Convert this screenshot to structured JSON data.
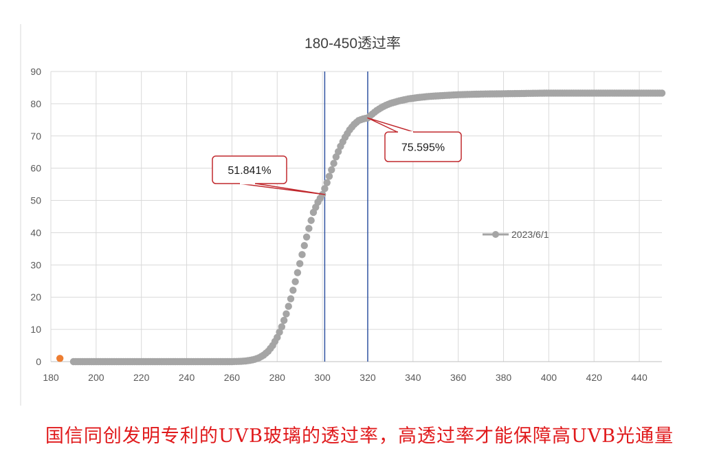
{
  "chart_data": {
    "type": "scatter",
    "title": "180-450透过率",
    "xlabel": "",
    "ylabel": "",
    "xlim": [
      180,
      450
    ],
    "ylim": [
      0,
      90
    ],
    "x_ticks": [
      180,
      200,
      220,
      240,
      260,
      280,
      300,
      320,
      340,
      360,
      380,
      400,
      420,
      440
    ],
    "y_ticks": [
      0,
      10,
      20,
      30,
      40,
      50,
      60,
      70,
      80,
      90
    ],
    "grid": true,
    "legend_position": "right",
    "series": [
      {
        "name": "2023/6/1",
        "color": "#a5a5a5",
        "x": [
          190,
          200,
          210,
          220,
          230,
          240,
          250,
          260,
          264,
          266,
          268,
          270,
          272,
          274,
          276,
          278,
          280,
          282,
          284,
          286,
          288,
          290,
          292,
          294,
          296,
          298,
          300,
          302,
          304,
          306,
          308,
          310,
          312,
          314,
          316,
          318,
          320,
          322,
          324,
          326,
          328,
          330,
          334,
          338,
          342,
          346,
          350,
          355,
          360,
          365,
          370,
          380,
          390,
          400,
          410,
          420,
          430,
          440,
          450
        ],
        "y": [
          0,
          0,
          0,
          0,
          0,
          0,
          0,
          0,
          0.1,
          0.2,
          0.4,
          0.7,
          1.2,
          2,
          3.2,
          5,
          7.5,
          10.8,
          14.8,
          19.5,
          24.8,
          30.4,
          36,
          41.3,
          46.3,
          49.5,
          51.841,
          55.5,
          59.5,
          63.5,
          66.8,
          69.6,
          71.9,
          73.6,
          74.8,
          75.3,
          75.595,
          76.8,
          77.9,
          78.8,
          79.5,
          80.1,
          80.9,
          81.5,
          81.9,
          82.2,
          82.4,
          82.6,
          82.8,
          82.9,
          83,
          83.1,
          83.2,
          83.3,
          83.3,
          83.3,
          83.3,
          83.3,
          83.3
        ]
      },
      {
        "name": "",
        "color": "#ed7d31",
        "x": [
          184
        ],
        "y": [
          1
        ]
      }
    ],
    "vertical_lines": [
      {
        "x": 301,
        "color": "#2f52a0"
      },
      {
        "x": 320,
        "color": "#2f52a0"
      }
    ],
    "annotations": [
      {
        "text": "51.841%",
        "point": [
          301,
          51.841
        ]
      },
      {
        "text": "75.595%",
        "point": [
          320,
          75.595
        ]
      }
    ]
  },
  "caption": "国信同创发明专利的UVB玻璃的透过率，高透过率才能保障高UVB光通量"
}
